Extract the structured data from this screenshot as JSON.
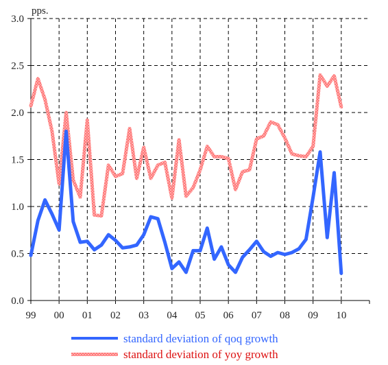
{
  "chart_data": {
    "type": "line",
    "title": "",
    "xlabel": "",
    "ylabel": "",
    "unit_label": "pps.",
    "x_tick_labels": [
      "99",
      "00",
      "01",
      "02",
      "03",
      "04",
      "05",
      "06",
      "07",
      "08",
      "09",
      "10"
    ],
    "x_range": [
      1999.0,
      2011.0
    ],
    "ylim": [
      0.0,
      3.0
    ],
    "y_ticks": [
      0.0,
      0.5,
      1.0,
      1.5,
      2.0,
      2.5,
      3.0
    ],
    "y_tick_labels": [
      "0.0",
      "0.5",
      "1.0",
      "1.5",
      "2.0",
      "2.5",
      "3.0"
    ],
    "grid": true,
    "grid_style": "dashed",
    "legend_position": "bottom",
    "series": [
      {
        "name": "standard deviation of qoq growth",
        "color": "#3366ff",
        "style": "solid",
        "x": [
          1999.0,
          1999.25,
          1999.5,
          1999.75,
          2000.0,
          2000.25,
          2000.5,
          2000.75,
          2001.0,
          2001.25,
          2001.5,
          2001.75,
          2002.0,
          2002.25,
          2002.5,
          2002.75,
          2003.0,
          2003.25,
          2003.5,
          2003.75,
          2004.0,
          2004.25,
          2004.5,
          2004.75,
          2005.0,
          2005.25,
          2005.5,
          2005.75,
          2006.0,
          2006.25,
          2006.5,
          2006.75,
          2007.0,
          2007.25,
          2007.5,
          2007.75,
          2008.0,
          2008.25,
          2008.5,
          2008.75,
          2009.0,
          2009.25,
          2009.5,
          2009.75,
          2010.0
        ],
        "values": [
          0.48,
          0.85,
          1.07,
          0.92,
          0.75,
          1.8,
          0.84,
          0.62,
          0.63,
          0.54,
          0.59,
          0.7,
          0.64,
          0.56,
          0.57,
          0.59,
          0.7,
          0.89,
          0.87,
          0.62,
          0.34,
          0.41,
          0.3,
          0.53,
          0.53,
          0.77,
          0.44,
          0.57,
          0.38,
          0.3,
          0.46,
          0.54,
          0.63,
          0.52,
          0.47,
          0.51,
          0.49,
          0.51,
          0.55,
          0.65,
          1.1,
          1.58,
          0.67,
          1.36,
          0.29
        ]
      },
      {
        "name": "standard deviation of yoy growth",
        "color": "#ff6b6b",
        "style": "textured",
        "x": [
          1999.0,
          1999.25,
          1999.5,
          1999.75,
          2000.0,
          2000.25,
          2000.5,
          2000.75,
          2001.0,
          2001.25,
          2001.5,
          2001.75,
          2002.0,
          2002.25,
          2002.5,
          2002.75,
          2003.0,
          2003.25,
          2003.5,
          2003.75,
          2004.0,
          2004.25,
          2004.5,
          2004.75,
          2005.0,
          2005.25,
          2005.5,
          2005.75,
          2006.0,
          2006.25,
          2006.5,
          2006.75,
          2007.0,
          2007.25,
          2007.5,
          2007.75,
          2008.0,
          2008.25,
          2008.5,
          2008.75,
          2009.0,
          2009.25,
          2009.5,
          2009.75,
          2010.0
        ],
        "values": [
          2.07,
          2.36,
          2.14,
          1.8,
          1.24,
          2.0,
          1.28,
          1.1,
          1.92,
          0.91,
          0.9,
          1.44,
          1.32,
          1.35,
          1.83,
          1.3,
          1.63,
          1.3,
          1.44,
          1.47,
          1.09,
          1.71,
          1.11,
          1.2,
          1.39,
          1.64,
          1.53,
          1.53,
          1.51,
          1.18,
          1.37,
          1.39,
          1.72,
          1.75,
          1.9,
          1.87,
          1.73,
          1.56,
          1.54,
          1.53,
          1.64,
          2.4,
          2.28,
          2.39,
          2.06
        ]
      }
    ]
  }
}
